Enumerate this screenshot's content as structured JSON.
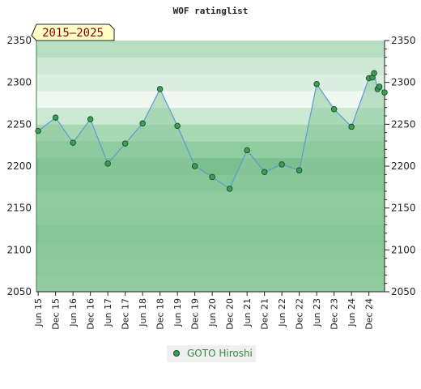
{
  "chart_data": {
    "type": "area",
    "title": "WOF ratinglist",
    "period_badge": "2015–2025",
    "xlabel": "",
    "ylabel": "",
    "ylim": [
      2050,
      2350
    ],
    "yticks": [
      2050,
      2100,
      2150,
      2200,
      2250,
      2300,
      2350
    ],
    "xlim": [
      2015.4,
      2025.4
    ],
    "x_ticks": [
      {
        "label": "Jun 15",
        "x": 2015.45
      },
      {
        "label": "Dec 15",
        "x": 2015.95
      },
      {
        "label": "Jun 16",
        "x": 2016.45
      },
      {
        "label": "Dec 16",
        "x": 2016.95
      },
      {
        "label": "Jun 17",
        "x": 2017.45
      },
      {
        "label": "Dec 17",
        "x": 2017.95
      },
      {
        "label": "Jun 18",
        "x": 2018.45
      },
      {
        "label": "Dec 18",
        "x": 2018.95
      },
      {
        "label": "Jun 19",
        "x": 2019.45
      },
      {
        "label": "Dec 19",
        "x": 2019.95
      },
      {
        "label": "Jun 20",
        "x": 2020.45
      },
      {
        "label": "Dec 20",
        "x": 2020.95
      },
      {
        "label": "Jun 21",
        "x": 2021.45
      },
      {
        "label": "Dec 21",
        "x": 2021.95
      },
      {
        "label": "Jun 22",
        "x": 2022.45
      },
      {
        "label": "Dec 22",
        "x": 2022.95
      },
      {
        "label": "Jun 23",
        "x": 2023.45
      },
      {
        "label": "Dec 23",
        "x": 2023.95
      },
      {
        "label": "Jun 24",
        "x": 2024.45
      },
      {
        "label": "Dec 24",
        "x": 2024.95
      }
    ],
    "series": [
      {
        "name": "GOTO Hiroshi",
        "x": [
          2015.45,
          2015.95,
          2016.45,
          2016.95,
          2017.45,
          2017.95,
          2018.45,
          2018.95,
          2019.45,
          2019.95,
          2020.45,
          2020.95,
          2021.45,
          2021.95,
          2022.45,
          2022.95,
          2023.45,
          2023.95,
          2024.45,
          2024.95,
          2025.05,
          2025.1,
          2025.2,
          2025.25,
          2025.4
        ],
        "values": [
          2242,
          2258,
          2228,
          2256,
          2203,
          2227,
          2251,
          2292,
          2248,
          2200,
          2187,
          2173,
          2219,
          2193,
          2202,
          2195,
          2298,
          2268,
          2247,
          2305,
          2306,
          2311,
          2292,
          2295,
          2288
        ]
      }
    ],
    "band_colors": [
      "#93cfa3",
      "#8cc99c",
      "#87c698",
      "#7dc18f",
      "#8cca9c",
      "#94cea4",
      "#84c696",
      "#7bbf8e",
      "#8fcca0",
      "#a8d9b3",
      "#cbe8d2",
      "#f0f8f2",
      "#dbeee1",
      "#cfe9d6",
      "#b9dfc3"
    ],
    "colors": {
      "line": "#5b9bd5",
      "fill": "#8cc99c",
      "point": "#3c9e55",
      "axis": "#222222"
    },
    "grid": false,
    "legend_position": "bottom-center"
  }
}
